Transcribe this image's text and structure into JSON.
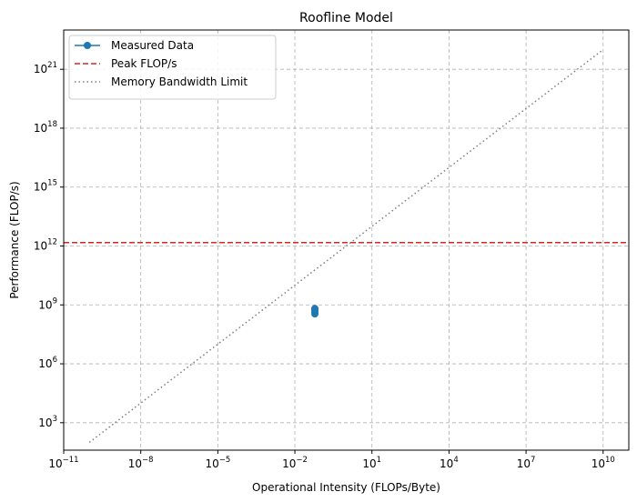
{
  "chart_data": {
    "type": "line",
    "title": "Roofline Model",
    "xlabel": "Operational Intensity (FLOPs/Byte)",
    "ylabel": "Performance (FLOP/s)",
    "xscale": "log",
    "yscale": "log",
    "xlim": [
      1e-11,
      100000000000.0
    ],
    "ylim": [
      40.0,
      1e+23
    ],
    "grid": true,
    "legend_position": "top-left",
    "x_ticks": [
      {
        "base": "10",
        "exp": "−11",
        "value": 1e-11
      },
      {
        "base": "10",
        "exp": "−8",
        "value": 1e-08
      },
      {
        "base": "10",
        "exp": "−5",
        "value": 1e-05
      },
      {
        "base": "10",
        "exp": "−2",
        "value": 0.01
      },
      {
        "base": "10",
        "exp": "1",
        "value": 10.0
      },
      {
        "base": "10",
        "exp": "4",
        "value": 10000.0
      },
      {
        "base": "10",
        "exp": "7",
        "value": 10000000.0
      },
      {
        "base": "10",
        "exp": "10",
        "value": 10000000000.0
      }
    ],
    "y_ticks": [
      {
        "base": "10",
        "exp": "3",
        "value": 1000.0
      },
      {
        "base": "10",
        "exp": "6",
        "value": 1000000.0
      },
      {
        "base": "10",
        "exp": "9",
        "value": 1000000000.0
      },
      {
        "base": "10",
        "exp": "12",
        "value": 1000000000000.0
      },
      {
        "base": "10",
        "exp": "15",
        "value": 1000000000000000.0
      },
      {
        "base": "10",
        "exp": "18",
        "value": 1e+18
      },
      {
        "base": "10",
        "exp": "21",
        "value": 1e+21
      }
    ],
    "series": [
      {
        "name": "Measured Data",
        "style": "solid-marker",
        "color": "#1f77b4",
        "points": [
          {
            "x": 0.06,
            "y": 350000000.0
          },
          {
            "x": 0.06,
            "y": 450000000.0
          },
          {
            "x": 0.06,
            "y": 550000000.0
          },
          {
            "x": 0.06,
            "y": 650000000.0
          }
        ]
      },
      {
        "name": "Peak FLOP/s",
        "style": "dashed",
        "color": "#d62728",
        "y": 1500000000000.0
      },
      {
        "name": "Memory Bandwidth Limit",
        "style": "dotted",
        "color": "#7f7f7f",
        "points": [
          {
            "x": 1e-10,
            "y": 100.0
          },
          {
            "x": 10000000000.0,
            "y": 1e+22
          }
        ]
      }
    ]
  }
}
